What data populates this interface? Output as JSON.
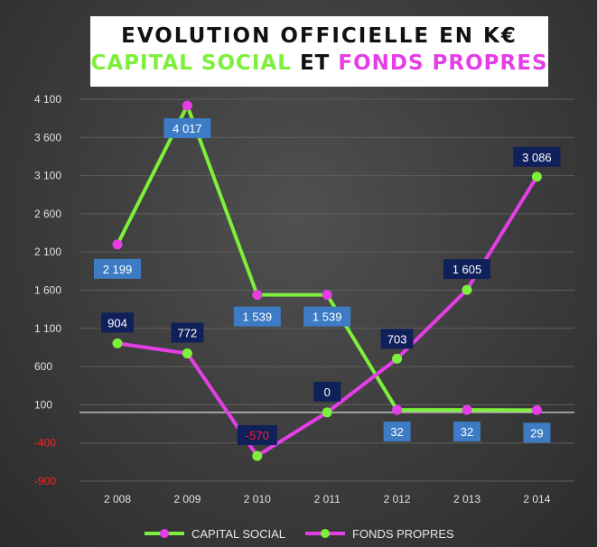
{
  "title": {
    "line1": "EVOLUTION OFFICIELLE EN K€",
    "part1": "CAPITAL SOCIAL",
    "part2": " ET ",
    "part3": "FONDS PROPRES"
  },
  "colors": {
    "capital_social": "#7cf03a",
    "fonds_propres": "#e63ee6",
    "negative_tick": "#ff2020",
    "tick": "#e0e0e0",
    "label_dark": "#10205a",
    "label_light": "#3d7cc4"
  },
  "chart_data": {
    "type": "line",
    "categories": [
      "2 008",
      "2 009",
      "2 010",
      "2 011",
      "2 012",
      "2 013",
      "2 014"
    ],
    "ylim": [
      -900,
      4100
    ],
    "yticks": [
      4100,
      3600,
      3100,
      2600,
      2100,
      1600,
      1100,
      600,
      100,
      -400,
      -900
    ],
    "ytick_labels": [
      "4 100",
      "3 600",
      "3 100",
      "2 600",
      "2 100",
      "1 600",
      "1 100",
      "600",
      "100",
      "-400",
      "-900"
    ],
    "grid": true,
    "legend": "bottom",
    "series": [
      {
        "name": "CAPITAL SOCIAL",
        "values": [
          2199,
          4017,
          1539,
          1539,
          32,
          32,
          29
        ],
        "labels": [
          "2 199",
          "4 017",
          "1 539",
          "1 539",
          "32",
          "32",
          "29"
        ]
      },
      {
        "name": "FONDS PROPRES",
        "values": [
          904,
          772,
          -570,
          0,
          703,
          1605,
          3086
        ],
        "labels": [
          "904",
          "772",
          "-570",
          "0",
          "703",
          "1 605",
          "3 086"
        ]
      }
    ]
  }
}
